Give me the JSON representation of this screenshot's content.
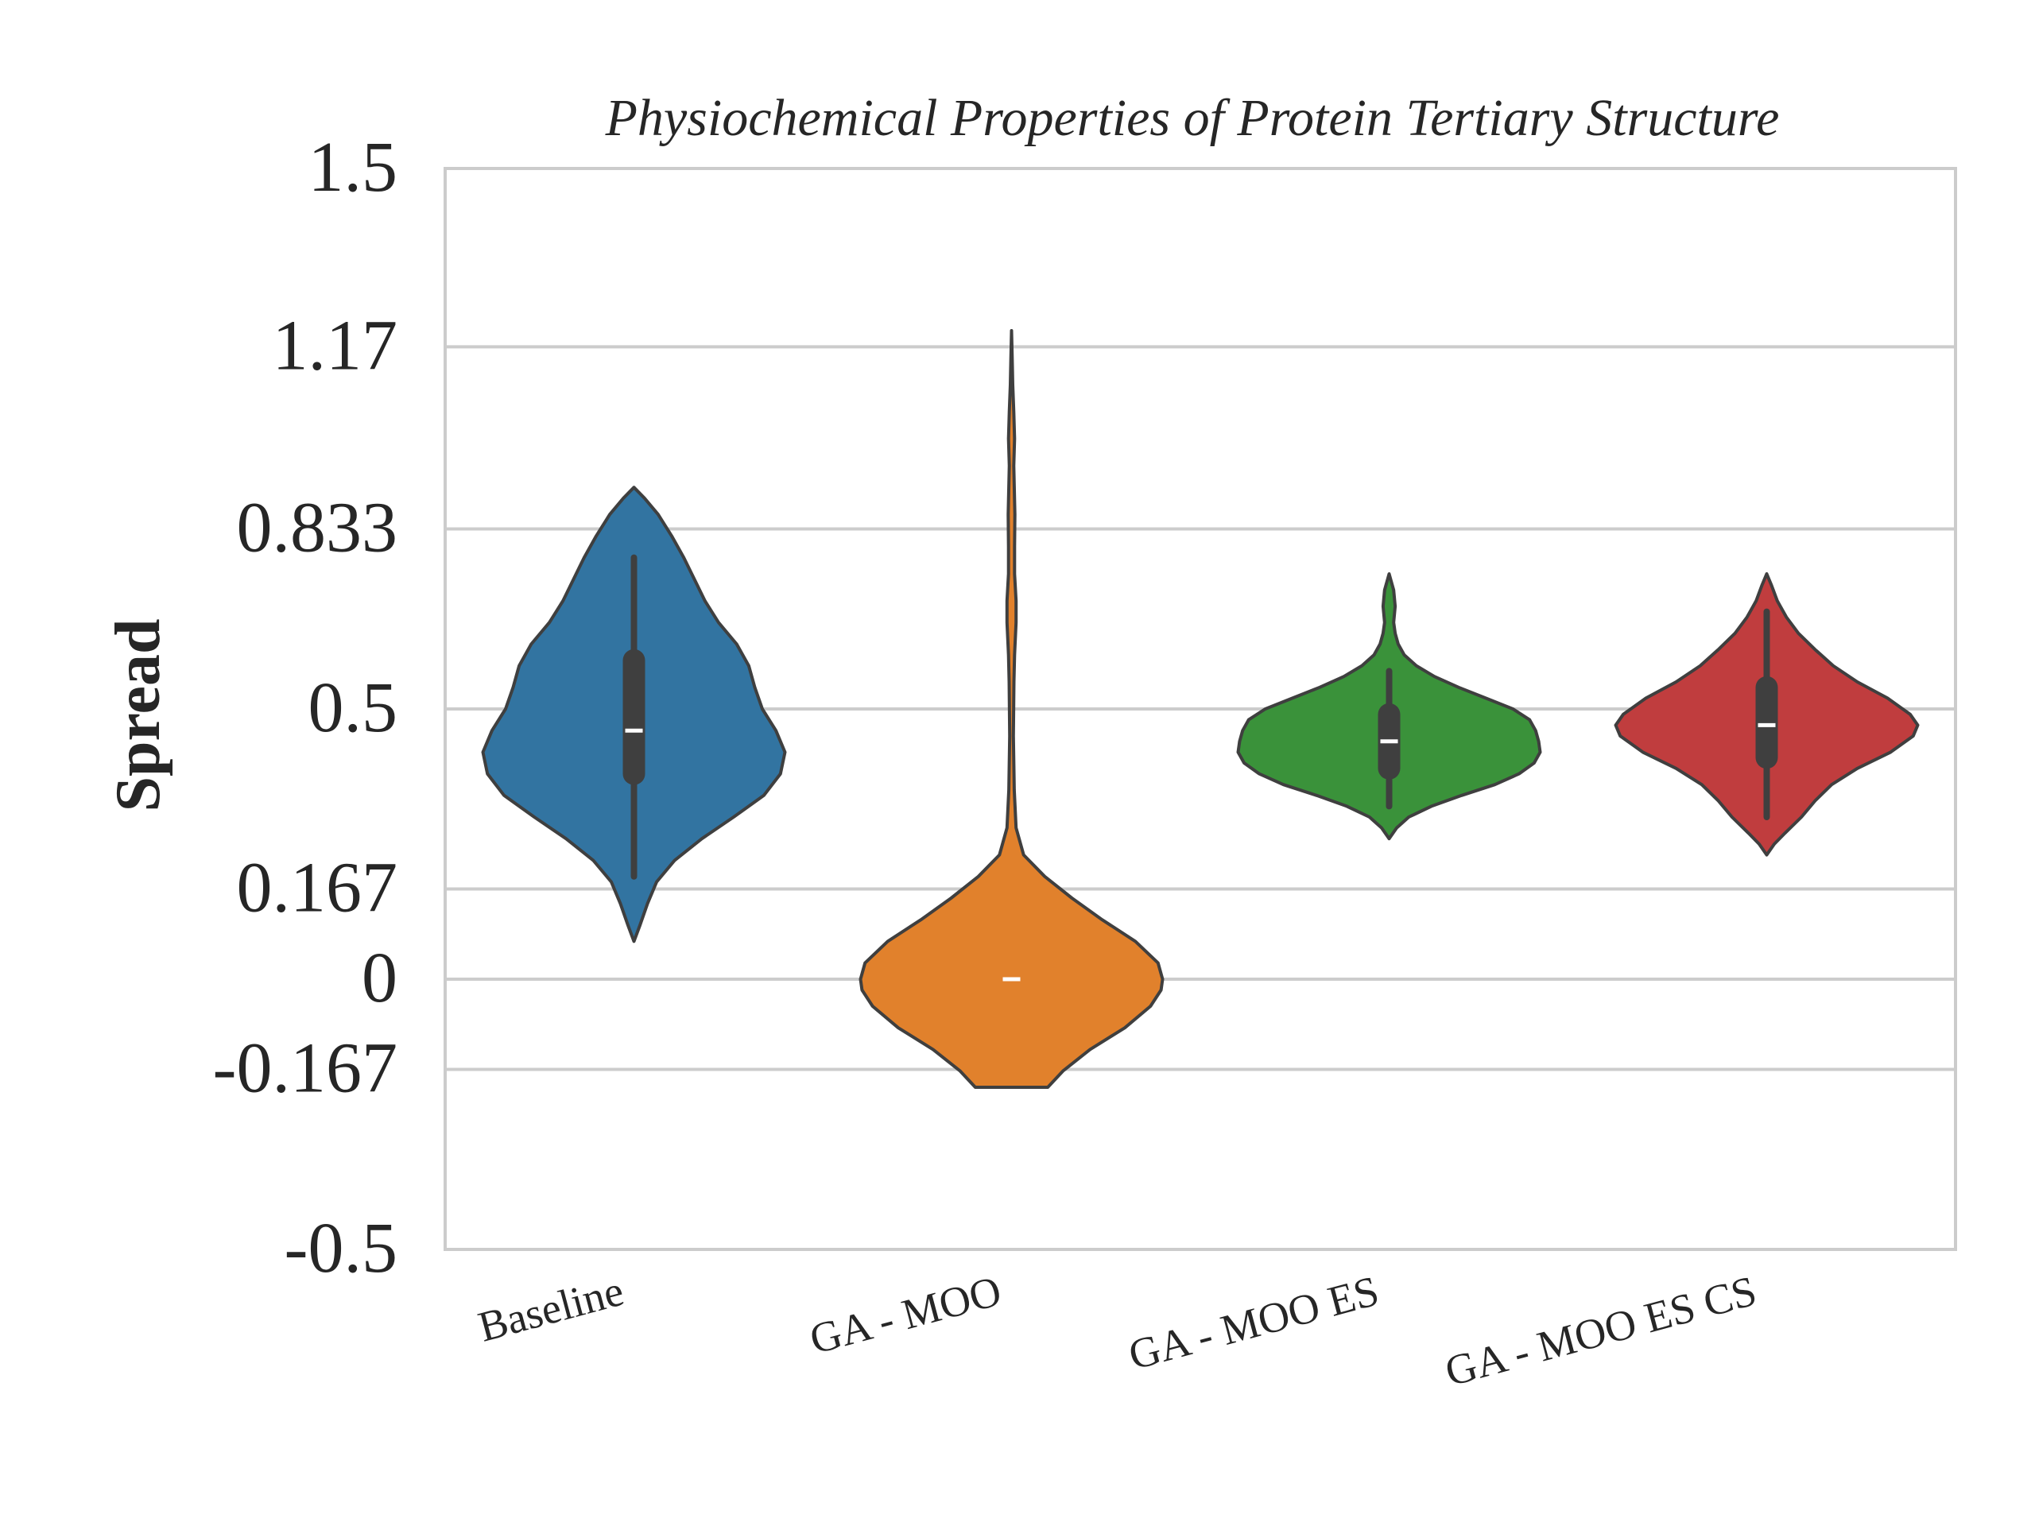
{
  "chart_data": {
    "type": "violin",
    "title": "Physiochemical Properties of Protein Tertiary Structure",
    "xlabel": "",
    "ylabel": "Spread",
    "ylim": [
      -0.5,
      1.5
    ],
    "yticks": [
      -0.5,
      -0.167,
      0,
      0.167,
      0.5,
      0.833,
      1.17,
      1.5
    ],
    "ytick_labels": [
      "-0.5",
      "-0.167",
      "0",
      "0.167",
      "0.5",
      "0.833",
      "1.17",
      "1.5"
    ],
    "grid": "horizontal",
    "categories": [
      "Baseline",
      "GA - MOO",
      "GA - MOO ES",
      "GA - MOO ES CS"
    ],
    "colors": [
      "#3274a1",
      "#e1812c",
      "#3a923a",
      "#c03d3e"
    ],
    "series": [
      {
        "category": "Baseline",
        "min": 0.07,
        "max": 0.91,
        "q1": 0.38,
        "median": 0.46,
        "q3": 0.59,
        "whisker_low": 0.19,
        "whisker_high": 0.78,
        "profile": [
          [
            0.07,
            0.0
          ],
          [
            0.1,
            0.04
          ],
          [
            0.14,
            0.09
          ],
          [
            0.18,
            0.15
          ],
          [
            0.22,
            0.27
          ],
          [
            0.26,
            0.45
          ],
          [
            0.3,
            0.66
          ],
          [
            0.34,
            0.86
          ],
          [
            0.38,
            0.97
          ],
          [
            0.42,
            1.0
          ],
          [
            0.46,
            0.94
          ],
          [
            0.5,
            0.85
          ],
          [
            0.54,
            0.8
          ],
          [
            0.58,
            0.76
          ],
          [
            0.62,
            0.68
          ],
          [
            0.66,
            0.56
          ],
          [
            0.7,
            0.47
          ],
          [
            0.74,
            0.4
          ],
          [
            0.78,
            0.33
          ],
          [
            0.82,
            0.25
          ],
          [
            0.86,
            0.16
          ],
          [
            0.89,
            0.07
          ],
          [
            0.91,
            0.0
          ]
        ]
      },
      {
        "category": "GA - MOO",
        "min": -0.2,
        "max": 1.2,
        "q1": 0.0,
        "median": 0.0,
        "q3": 0.0,
        "whisker_low": 0.0,
        "whisker_high": 0.0,
        "profile": [
          [
            -0.2,
            0.24
          ],
          [
            -0.17,
            0.34
          ],
          [
            -0.13,
            0.52
          ],
          [
            -0.09,
            0.75
          ],
          [
            -0.05,
            0.92
          ],
          [
            -0.02,
            0.99
          ],
          [
            0.0,
            1.0
          ],
          [
            0.03,
            0.97
          ],
          [
            0.07,
            0.82
          ],
          [
            0.11,
            0.6
          ],
          [
            0.15,
            0.4
          ],
          [
            0.19,
            0.22
          ],
          [
            0.23,
            0.08
          ],
          [
            0.28,
            0.03
          ],
          [
            0.35,
            0.018
          ],
          [
            0.45,
            0.012
          ],
          [
            0.55,
            0.016
          ],
          [
            0.6,
            0.02
          ],
          [
            0.66,
            0.03
          ],
          [
            0.7,
            0.03
          ],
          [
            0.75,
            0.02
          ],
          [
            0.8,
            0.02
          ],
          [
            0.86,
            0.022
          ],
          [
            0.95,
            0.015
          ],
          [
            1.0,
            0.02
          ],
          [
            1.05,
            0.015
          ],
          [
            1.1,
            0.008
          ],
          [
            1.15,
            0.004
          ],
          [
            1.2,
            0.0
          ]
        ]
      },
      {
        "category": "GA - MOO ES",
        "min": 0.26,
        "max": 0.75,
        "q1": 0.39,
        "median": 0.44,
        "q3": 0.49,
        "whisker_low": 0.32,
        "whisker_high": 0.57,
        "profile": [
          [
            0.26,
            0.0
          ],
          [
            0.28,
            0.05
          ],
          [
            0.3,
            0.13
          ],
          [
            0.32,
            0.28
          ],
          [
            0.34,
            0.48
          ],
          [
            0.36,
            0.7
          ],
          [
            0.38,
            0.86
          ],
          [
            0.4,
            0.96
          ],
          [
            0.42,
            1.0
          ],
          [
            0.44,
            0.99
          ],
          [
            0.46,
            0.97
          ],
          [
            0.48,
            0.93
          ],
          [
            0.5,
            0.82
          ],
          [
            0.52,
            0.64
          ],
          [
            0.54,
            0.46
          ],
          [
            0.56,
            0.3
          ],
          [
            0.58,
            0.18
          ],
          [
            0.6,
            0.1
          ],
          [
            0.62,
            0.06
          ],
          [
            0.64,
            0.04
          ],
          [
            0.66,
            0.03
          ],
          [
            0.69,
            0.04
          ],
          [
            0.72,
            0.03
          ],
          [
            0.75,
            0.0
          ]
        ]
      },
      {
        "category": "GA - MOO ES CS",
        "min": 0.23,
        "max": 0.75,
        "q1": 0.41,
        "median": 0.47,
        "q3": 0.54,
        "whisker_low": 0.3,
        "whisker_high": 0.68,
        "profile": [
          [
            0.23,
            0.0
          ],
          [
            0.25,
            0.05
          ],
          [
            0.27,
            0.12
          ],
          [
            0.3,
            0.23
          ],
          [
            0.33,
            0.32
          ],
          [
            0.36,
            0.43
          ],
          [
            0.39,
            0.6
          ],
          [
            0.42,
            0.82
          ],
          [
            0.45,
            0.97
          ],
          [
            0.47,
            1.0
          ],
          [
            0.49,
            0.95
          ],
          [
            0.52,
            0.8
          ],
          [
            0.55,
            0.6
          ],
          [
            0.58,
            0.44
          ],
          [
            0.61,
            0.32
          ],
          [
            0.64,
            0.21
          ],
          [
            0.67,
            0.13
          ],
          [
            0.7,
            0.07
          ],
          [
            0.73,
            0.03
          ],
          [
            0.75,
            0.0
          ]
        ]
      }
    ]
  }
}
